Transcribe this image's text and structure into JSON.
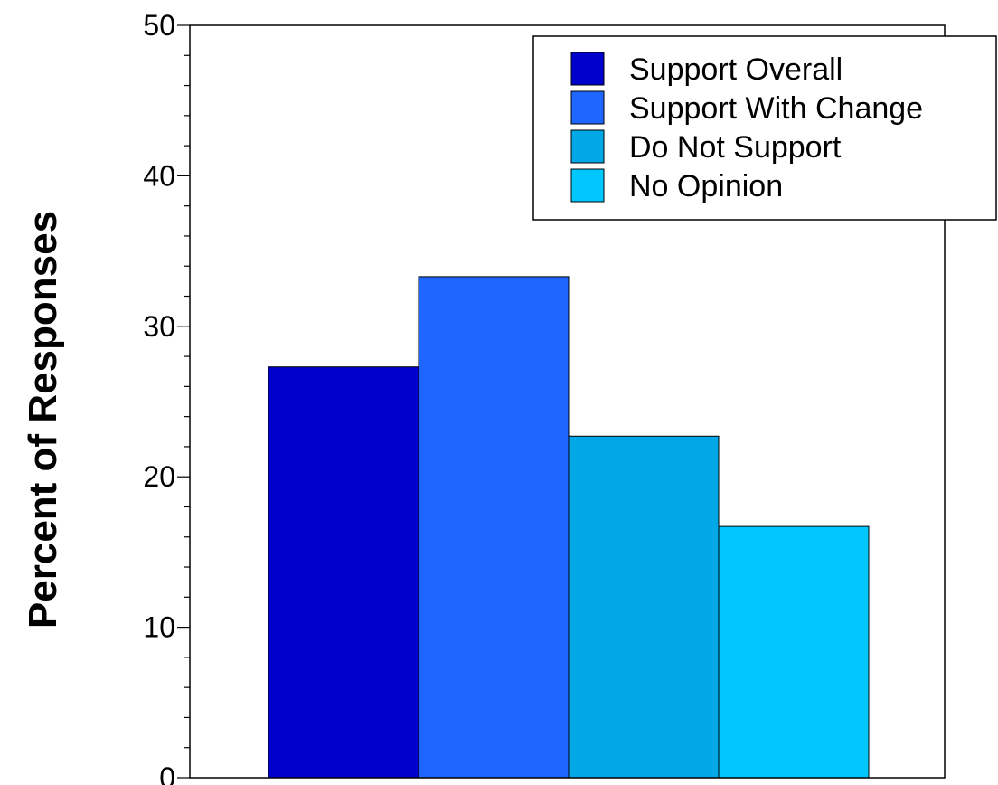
{
  "chart_data": {
    "type": "bar",
    "ylabel": "Percent of Responses",
    "xlabel": "",
    "ylim": [
      0,
      50
    ],
    "yticks": [
      0,
      10,
      20,
      30,
      40,
      50
    ],
    "legend_position": "top-right",
    "grid": false,
    "series": [
      {
        "name": "Support Overall",
        "value": 27.3,
        "color": "#0000cc"
      },
      {
        "name": "Support With Change",
        "value": 33.3,
        "color": "#1f66ff"
      },
      {
        "name": "Do Not Support",
        "value": 22.7,
        "color": "#00a8e8"
      },
      {
        "name": "No Opinion",
        "value": 16.7,
        "color": "#00c8ff"
      }
    ]
  }
}
